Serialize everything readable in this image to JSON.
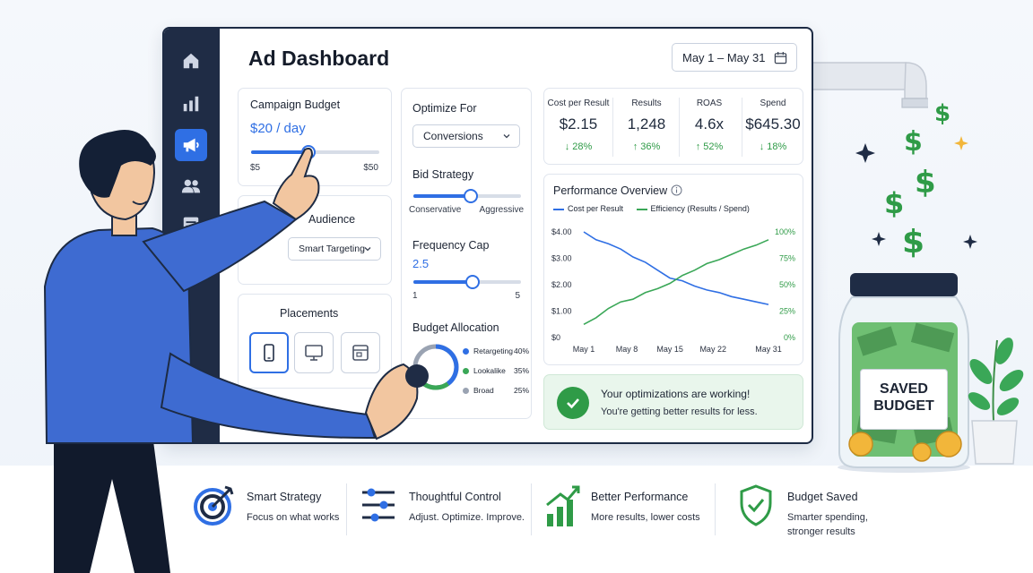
{
  "window": {
    "title": "Ad Dashboard",
    "date_range": "May 1 – May 31"
  },
  "sidebar": {
    "items": [
      "home-icon",
      "bar-chart-icon",
      "megaphone-icon",
      "users-icon",
      "list-icon",
      "gear-icon"
    ],
    "active": "megaphone-icon"
  },
  "campaign_budget": {
    "label": "Campaign Budget",
    "value": "$20 / day",
    "min": "$5",
    "max": "$50",
    "level": 0.45
  },
  "audience": {
    "label": "Audience",
    "selected": "Smart Targeting"
  },
  "placements": {
    "label": "Placements",
    "options": [
      "mobile-icon",
      "desktop-icon",
      "app-icon"
    ],
    "selected": "mobile-icon"
  },
  "optimize": {
    "label": "Optimize For",
    "selected": "Conversions"
  },
  "bid_strategy": {
    "label": "Bid Strategy",
    "left": "Conservative",
    "right": "Aggressive",
    "level": 0.53
  },
  "frequency_cap": {
    "label": "Frequency Cap",
    "value": "2.5",
    "min": "1",
    "max": "5",
    "level": 0.55
  },
  "budget_allocation": {
    "label": "Budget Allocation",
    "items": [
      {
        "name": "Retargeting",
        "percent": "40%",
        "color": "#2f6fe4"
      },
      {
        "name": "Lookalike",
        "percent": "35%",
        "color": "#3aa757"
      },
      {
        "name": "Broad",
        "percent": "25%",
        "color": "#9aa3b2"
      }
    ]
  },
  "metrics": [
    {
      "label": "Cost per Result",
      "value": "$2.15",
      "change": "↓ 28%"
    },
    {
      "label": "Results",
      "value": "1,248",
      "change": "↑ 36%"
    },
    {
      "label": "ROAS",
      "value": "4.6x",
      "change": "↑ 52%"
    },
    {
      "label": "Spend",
      "value": "$645.30",
      "change": "↓ 18%"
    }
  ],
  "performance": {
    "title": "Performance Overview",
    "legend": [
      {
        "name": "Cost per Result",
        "color": "#2f6fe4"
      },
      {
        "name": "Efficiency (Results / Spend)",
        "color": "#3aa757"
      }
    ]
  },
  "chart_data": {
    "type": "line",
    "title": "Performance Overview",
    "x_labels": [
      "May 1",
      "May 8",
      "May 15",
      "May 22",
      "May 31"
    ],
    "y_left_ticks": [
      "$4.00",
      "$3.00",
      "$2.00",
      "$1.00",
      "$0"
    ],
    "y_right_ticks": [
      "100%",
      "75%",
      "50%",
      "25%",
      "0%"
    ],
    "ylim_left": [
      0,
      4
    ],
    "ylim_right": [
      0,
      100
    ],
    "x": [
      1,
      3,
      5,
      7,
      9,
      11,
      13,
      15,
      17,
      19,
      21,
      23,
      25,
      27,
      29,
      31
    ],
    "series": [
      {
        "name": "Cost per Result",
        "axis": "left",
        "color": "#2f6fe4",
        "values": [
          4.0,
          3.7,
          3.55,
          3.35,
          3.05,
          2.85,
          2.55,
          2.25,
          2.15,
          1.95,
          1.8,
          1.7,
          1.55,
          1.45,
          1.35,
          1.25
        ]
      },
      {
        "name": "Efficiency (Results / Spend)",
        "axis": "left",
        "color": "#3aa757",
        "values": [
          0.5,
          0.75,
          1.1,
          1.35,
          1.45,
          1.7,
          1.85,
          2.05,
          2.35,
          2.55,
          2.8,
          2.95,
          3.15,
          3.35,
          3.5,
          3.7
        ]
      }
    ]
  },
  "success": {
    "title": "Your optimizations are working!",
    "subtitle": "You're getting better results for less."
  },
  "jar": {
    "line1": "SAVED",
    "line2": "BUDGET"
  },
  "features": [
    {
      "title": "Smart Strategy",
      "subtitle": "Focus on what works",
      "icon": "target-icon"
    },
    {
      "title": "Thoughtful Control",
      "subtitle": "Adjust. Optimize. Improve.",
      "icon": "sliders-icon"
    },
    {
      "title": "Better Performance",
      "subtitle": "More results, lower costs",
      "icon": "growth-chart-icon"
    },
    {
      "title": "Budget Saved",
      "subtitle": "Smarter spending, stronger results",
      "icon": "shield-check-icon"
    }
  ]
}
